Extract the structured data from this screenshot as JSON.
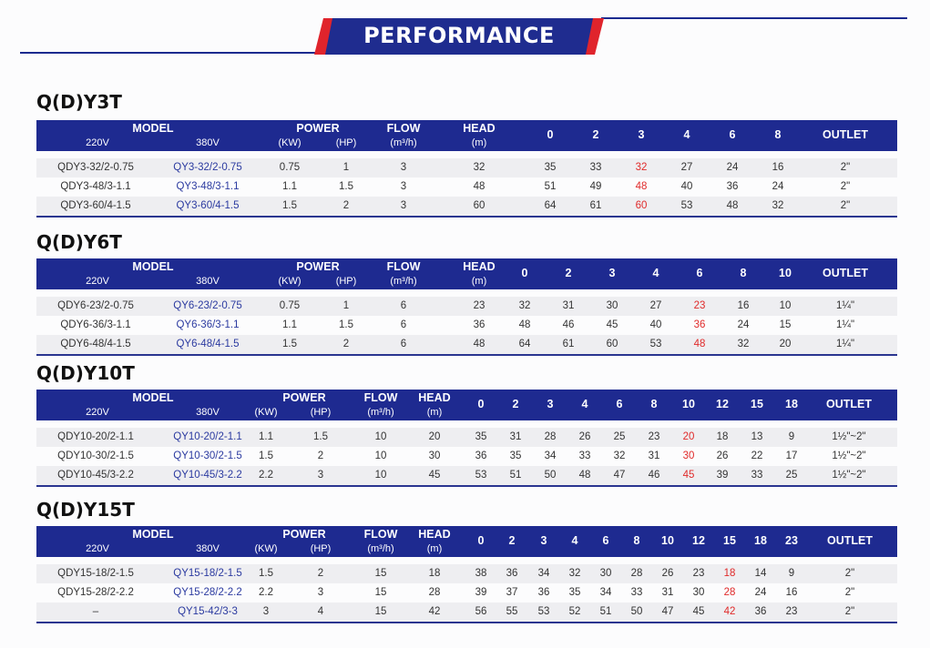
{
  "banner": {
    "title": "PERFORMANCE"
  },
  "header_labels": {
    "model": "MODEL",
    "v220": "220V",
    "v380": "380V",
    "power": "POWER",
    "kw": "(KW)",
    "hp": "(HP)",
    "flow": "FLOW",
    "flow_unit": "(m³/h)",
    "head": "HEAD",
    "head_unit": "(m)",
    "outlet": "OUTLET"
  },
  "sections": [
    {
      "title": "Q(D)Y3T",
      "head_points": [
        "0",
        "2",
        "3",
        "4",
        "6",
        "8"
      ],
      "highlight_col": 2,
      "rows": [
        {
          "m220": "QDY3-32/2-0.75",
          "m380": "QY3-32/2-0.75",
          "kw": "0.75",
          "hp": "1",
          "flow": "3",
          "head": "32",
          "values": [
            "35",
            "33",
            "32",
            "27",
            "24",
            "16"
          ],
          "outlet": "2\""
        },
        {
          "m220": "QDY3-48/3-1.1",
          "m380": "QY3-48/3-1.1",
          "kw": "1.1",
          "hp": "1.5",
          "flow": "3",
          "head": "48",
          "values": [
            "51",
            "49",
            "48",
            "40",
            "36",
            "24"
          ],
          "outlet": "2\""
        },
        {
          "m220": "QDY3-60/4-1.5",
          "m380": "QY3-60/4-1.5",
          "kw": "1.5",
          "hp": "2",
          "flow": "3",
          "head": "60",
          "values": [
            "64",
            "61",
            "60",
            "53",
            "48",
            "32"
          ],
          "outlet": "2\""
        }
      ]
    },
    {
      "title": "Q(D)Y6T",
      "head_points": [
        "0",
        "2",
        "3",
        "4",
        "6",
        "8",
        "10"
      ],
      "highlight_col": 4,
      "rows": [
        {
          "m220": "QDY6-23/2-0.75",
          "m380": "QY6-23/2-0.75",
          "kw": "0.75",
          "hp": "1",
          "flow": "6",
          "head": "23",
          "values": [
            "32",
            "31",
            "30",
            "27",
            "23",
            "16",
            "10"
          ],
          "outlet": "1¼\""
        },
        {
          "m220": "QDY6-36/3-1.1",
          "m380": "QY6-36/3-1.1",
          "kw": "1.1",
          "hp": "1.5",
          "flow": "6",
          "head": "36",
          "values": [
            "48",
            "46",
            "45",
            "40",
            "36",
            "24",
            "15"
          ],
          "outlet": "1¼\""
        },
        {
          "m220": "QDY6-48/4-1.5",
          "m380": "QY6-48/4-1.5",
          "kw": "1.5",
          "hp": "2",
          "flow": "6",
          "head": "48",
          "values": [
            "64",
            "61",
            "60",
            "53",
            "48",
            "32",
            "20"
          ],
          "outlet": "1¼\""
        }
      ]
    },
    {
      "title": "Q(D)Y10T",
      "head_points": [
        "0",
        "2",
        "3",
        "4",
        "6",
        "8",
        "10",
        "12",
        "15",
        "18"
      ],
      "highlight_col": 6,
      "rows": [
        {
          "m220": "QDY10-20/2-1.1",
          "m380": "QY10-20/2-1.1",
          "kw": "1.1",
          "hp": "1.5",
          "flow": "10",
          "head": "20",
          "values": [
            "35",
            "31",
            "28",
            "26",
            "25",
            "23",
            "20",
            "18",
            "13",
            "9"
          ],
          "outlet": "1½\"~2\""
        },
        {
          "m220": "QDY10-30/2-1.5",
          "m380": "QY10-30/2-1.5",
          "kw": "1.5",
          "hp": "2",
          "flow": "10",
          "head": "30",
          "values": [
            "36",
            "35",
            "34",
            "33",
            "32",
            "31",
            "30",
            "26",
            "22",
            "17"
          ],
          "outlet": "1½\"~2\""
        },
        {
          "m220": "QDY10-45/3-2.2",
          "m380": "QY10-45/3-2.2",
          "kw": "2.2",
          "hp": "3",
          "flow": "10",
          "head": "45",
          "values": [
            "53",
            "51",
            "50",
            "48",
            "47",
            "46",
            "45",
            "39",
            "33",
            "25"
          ],
          "outlet": "1½\"~2\""
        }
      ]
    },
    {
      "title": "Q(D)Y15T",
      "head_points": [
        "0",
        "2",
        "3",
        "4",
        "6",
        "8",
        "10",
        "12",
        "15",
        "18",
        "23"
      ],
      "highlight_col": 8,
      "rows": [
        {
          "m220": "QDY15-18/2-1.5",
          "m380": "QY15-18/2-1.5",
          "kw": "1.5",
          "hp": "2",
          "flow": "15",
          "head": "18",
          "values": [
            "38",
            "36",
            "34",
            "32",
            "30",
            "28",
            "26",
            "23",
            "18",
            "14",
            "9"
          ],
          "outlet": "2\""
        },
        {
          "m220": "QDY15-28/2-2.2",
          "m380": "QY15-28/2-2.2",
          "kw": "2.2",
          "hp": "3",
          "flow": "15",
          "head": "28",
          "values": [
            "39",
            "37",
            "36",
            "35",
            "34",
            "33",
            "31",
            "30",
            "28",
            "24",
            "16"
          ],
          "outlet": "2\""
        },
        {
          "m220": "–",
          "m380": "QY15-42/3-3",
          "kw": "3",
          "hp": "4",
          "flow": "15",
          "head": "42",
          "values": [
            "56",
            "55",
            "53",
            "52",
            "51",
            "50",
            "47",
            "45",
            "42",
            "36",
            "23"
          ],
          "outlet": "2\""
        }
      ]
    }
  ]
}
